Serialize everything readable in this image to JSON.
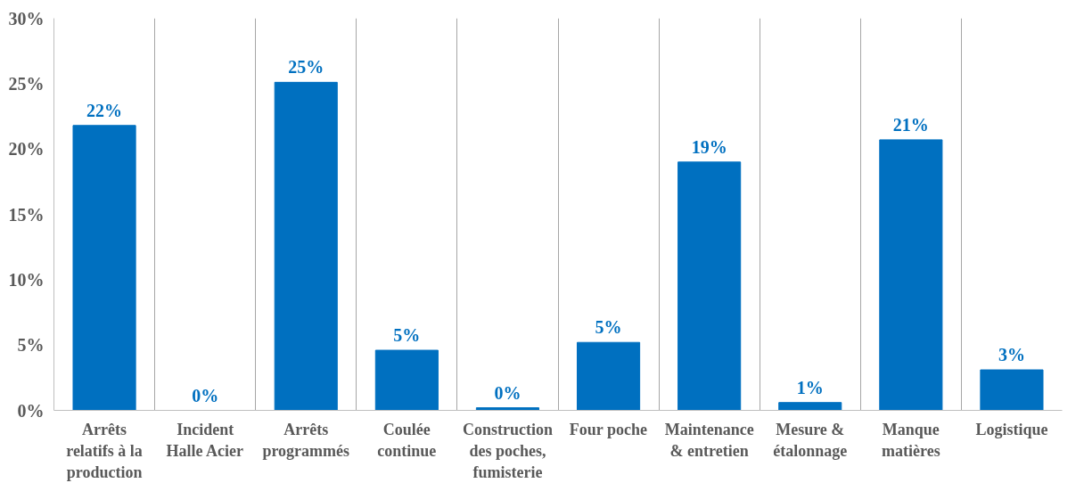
{
  "chart_data": {
    "type": "bar",
    "categories": [
      "Arrêts\nrelatifs à la\nproduction",
      "Incident\nHalle Acier",
      "Arrêts\nprogrammés",
      "Coulée\ncontinue",
      "Construction\ndes poches,\nfumisterie",
      "Four poche",
      "Maintenance\n& entretien",
      "Mesure &\nétalonnage",
      "Manque\nmatières",
      "Logistique"
    ],
    "values": [
      21.8,
      0,
      25.1,
      4.6,
      0.2,
      5.2,
      19.0,
      0.6,
      20.7,
      3.1
    ],
    "value_labels": [
      "22%",
      "0%",
      "25%",
      "5%",
      "0%",
      "5%",
      "19%",
      "1%",
      "21%",
      "3%"
    ],
    "color": "#0070c0",
    "ylim": [
      0,
      30
    ],
    "yticks": [
      {
        "value": 0,
        "label": "0%"
      },
      {
        "value": 5,
        "label": "5%"
      },
      {
        "value": 10,
        "label": "10%"
      },
      {
        "value": 15,
        "label": "15%"
      },
      {
        "value": 20,
        "label": "20%"
      },
      {
        "value": 25,
        "label": "25%"
      },
      {
        "value": 30,
        "label": "30%"
      }
    ],
    "grid": "x"
  }
}
